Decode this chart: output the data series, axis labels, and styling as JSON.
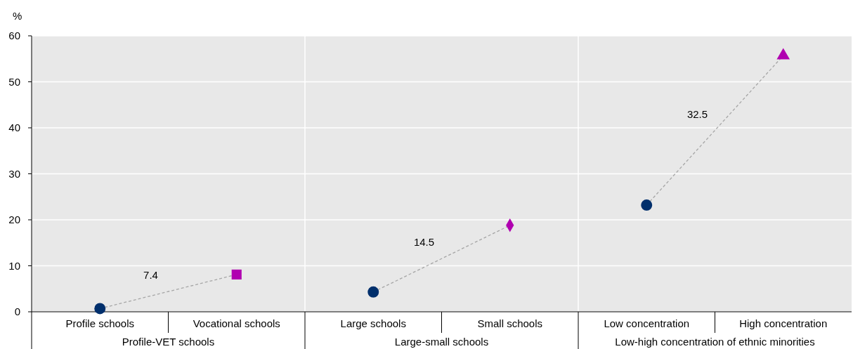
{
  "chart_data": {
    "type": "scatter",
    "ylabel": "%",
    "categories": [
      "Profile schools",
      "Vocational schools",
      "Large schools",
      "Small schools",
      "Low concentration",
      "High concentration"
    ],
    "ylim": [
      0,
      60
    ],
    "yticks": [
      0,
      10,
      20,
      30,
      40,
      50,
      60
    ],
    "grid": "y",
    "annotations": [
      "Profile-VET schools",
      "Large-small schools",
      "Low-high concentration of ethnic minorities",
      "7.4",
      "14.5",
      "32.5"
    ],
    "series": [
      {
        "type": "line",
        "color": "#a6a6a6",
        "line_style": "dashed",
        "values": [
          0.7,
          8.1,
          null,
          null,
          null,
          null
        ]
      },
      {
        "type": "line",
        "color": "#a6a6a6",
        "line_style": "dashed",
        "values": [
          null,
          null,
          4.3,
          18.8,
          null,
          null
        ]
      },
      {
        "type": "line",
        "color": "#a6a6a6",
        "line_style": "dashed",
        "values": [
          null,
          null,
          null,
          null,
          23.2,
          55.7
        ]
      },
      {
        "color": "#002f6c",
        "marker": "circle",
        "values": [
          0.7,
          null,
          4.3,
          null,
          23.2,
          null
        ]
      },
      {
        "color": "#b000b0",
        "marker": "square",
        "values": [
          null,
          8.1,
          null,
          null,
          null,
          null
        ]
      },
      {
        "color": "#b000b0",
        "marker": "diamond",
        "values": [
          null,
          null,
          null,
          18.8,
          null,
          null
        ]
      },
      {
        "color": "#b000b0",
        "marker": "triangle",
        "values": [
          null,
          null,
          null,
          null,
          null,
          55.7
        ]
      }
    ]
  }
}
